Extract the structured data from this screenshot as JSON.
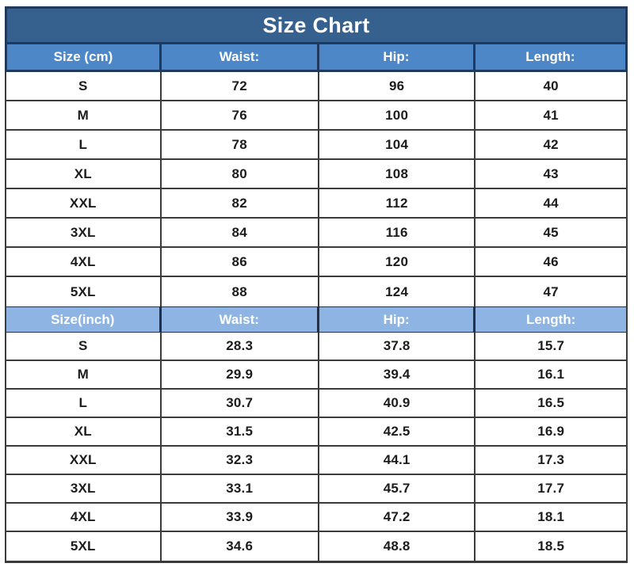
{
  "title": "Size Chart",
  "table": {
    "sections": [
      {
        "unit": "cm",
        "header": [
          "Size (cm)",
          "Waist:",
          "Hip:",
          "Length:"
        ],
        "rows": [
          [
            "S",
            "72",
            "96",
            "40"
          ],
          [
            "M",
            "76",
            "100",
            "41"
          ],
          [
            "L",
            "78",
            "104",
            "42"
          ],
          [
            "XL",
            "80",
            "108",
            "43"
          ],
          [
            "XXL",
            "82",
            "112",
            "44"
          ],
          [
            "3XL",
            "84",
            "116",
            "45"
          ],
          [
            "4XL",
            "86",
            "120",
            "46"
          ],
          [
            "5XL",
            "88",
            "124",
            "47"
          ]
        ]
      },
      {
        "unit": "inch",
        "header": [
          "Size(inch)",
          "Waist:",
          "Hip:",
          "Length:"
        ],
        "rows": [
          [
            "S",
            "28.3",
            "37.8",
            "15.7"
          ],
          [
            "M",
            "29.9",
            "39.4",
            "16.1"
          ],
          [
            "L",
            "30.7",
            "40.9",
            "16.5"
          ],
          [
            "XL",
            "31.5",
            "42.5",
            "16.9"
          ],
          [
            "XXL",
            "32.3",
            "44.1",
            "17.3"
          ],
          [
            "3XL",
            "33.1",
            "45.7",
            "17.7"
          ],
          [
            "4XL",
            "33.9",
            "47.2",
            "18.1"
          ],
          [
            "5XL",
            "34.6",
            "48.8",
            "18.5"
          ]
        ]
      }
    ]
  },
  "colors": {
    "title_background": "#36618F",
    "band_border": "#1F3A5E",
    "cm_header_background": "#4D87C8",
    "inch_header_background": "#8DB4E2",
    "row_border": "#3B3B3B",
    "header_text": "#FFFFFF",
    "cell_text": "#1C1C1C",
    "page_background": "#FFFFFF"
  }
}
